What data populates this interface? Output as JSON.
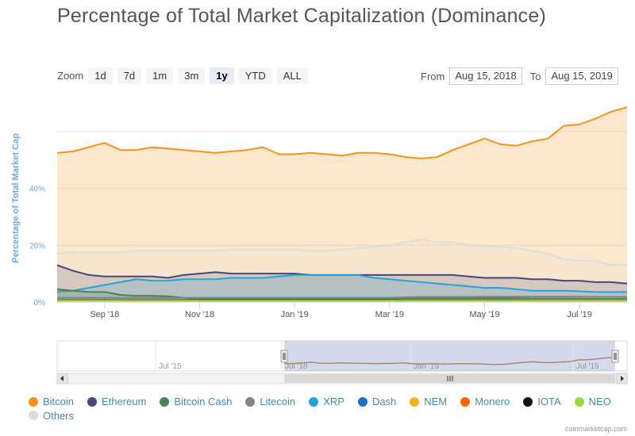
{
  "title": "Percentage of Total Market Capitalization (Dominance)",
  "zoom": {
    "label": "Zoom",
    "buttons": [
      "1d",
      "7d",
      "1m",
      "3m",
      "1y",
      "YTD",
      "ALL"
    ],
    "active": "1y"
  },
  "range": {
    "from_label": "From",
    "from_value": "Aug 15, 2018",
    "to_label": "To",
    "to_value": "Aug 15, 2019"
  },
  "chart_data": {
    "type": "area",
    "title": "Percentage of Total Market Capitalization (Dominance)",
    "ylabel": "Percentage of Total Market Cap",
    "xlabel": "",
    "ylim": [
      0,
      70
    ],
    "y_ticks": [
      "0%",
      "20%",
      "40%"
    ],
    "x_ticks": [
      "Sep '18",
      "Nov '18",
      "Jan '19",
      "Mar '19",
      "May '19",
      "Jul '19"
    ],
    "x": [
      "Aug 15 '18",
      "Aug 25 '18",
      "Sep 5 '18",
      "Sep 15 '18",
      "Sep 25 '18",
      "Oct 5 '18",
      "Oct 15 '18",
      "Oct 25 '18",
      "Nov 5 '18",
      "Nov 15 '18",
      "Nov 25 '18",
      "Dec 5 '18",
      "Dec 15 '18",
      "Dec 25 '18",
      "Jan 5 '19",
      "Jan 15 '19",
      "Jan 25 '19",
      "Feb 5 '19",
      "Feb 15 '19",
      "Feb 25 '19",
      "Mar 5 '19",
      "Mar 15 '19",
      "Mar 25 '19",
      "Apr 5 '19",
      "Apr 15 '19",
      "Apr 25 '19",
      "May 5 '19",
      "May 15 '19",
      "May 25 '19",
      "Jun 5 '19",
      "Jun 15 '19",
      "Jun 25 '19",
      "Jul 5 '19",
      "Jul 15 '19",
      "Jul 25 '19",
      "Aug 5 '19",
      "Aug 15 '19"
    ],
    "series": [
      {
        "name": "Bitcoin",
        "color": "#f7931a",
        "values": [
          52.5,
          53,
          54.5,
          56,
          53.5,
          53.5,
          54.5,
          54,
          53.5,
          53,
          52.5,
          53,
          53.5,
          54.5,
          52,
          52,
          52.5,
          52,
          51.5,
          52.5,
          52.5,
          52,
          51,
          50.5,
          51,
          53.5,
          55.5,
          57.5,
          55.5,
          55,
          56.5,
          57.5,
          62,
          62.5,
          64.5,
          67,
          68.5
        ]
      },
      {
        "name": "Ethereum",
        "color": "#454a75",
        "values": [
          13,
          11,
          9.5,
          9,
          9,
          9,
          9,
          8.5,
          9.5,
          10,
          10.5,
          10,
          10,
          10,
          10,
          10,
          9.5,
          9.5,
          9.5,
          9.5,
          9.5,
          9.5,
          9.5,
          9.5,
          9.5,
          9.5,
          9,
          8.5,
          8.5,
          8.5,
          8,
          8,
          7.5,
          7.5,
          7,
          7,
          6.5
        ]
      },
      {
        "name": "Bitcoin Cash",
        "color": "#478558",
        "values": [
          4.5,
          4,
          3.5,
          3.5,
          2.5,
          2.2,
          2.2,
          2,
          1.5,
          1,
          1,
          1,
          1,
          1,
          1.1,
          1.1,
          1.1,
          1.1,
          1.1,
          1.1,
          1.1,
          1.2,
          1.4,
          1.4,
          1.4,
          1.4,
          1.4,
          1.4,
          1.4,
          1.4,
          1.2,
          1.2,
          1.2,
          1.2,
          1.1,
          1.1,
          1.1
        ]
      },
      {
        "name": "Litecoin",
        "color": "#838383",
        "values": [
          1.5,
          1.5,
          1.5,
          1.5,
          1.5,
          1.5,
          1.5,
          1.5,
          1.5,
          1.5,
          1.5,
          1.5,
          1.5,
          1.5,
          1.5,
          1.5,
          1.5,
          1.5,
          1.5,
          1.5,
          1.5,
          1.5,
          1.7,
          1.8,
          1.8,
          1.8,
          1.8,
          1.9,
          1.9,
          1.9,
          1.9,
          1.9,
          1.9,
          1.9,
          1.8,
          1.8,
          1.8
        ]
      },
      {
        "name": "XRP",
        "color": "#27a2db",
        "values": [
          3.7,
          4,
          5,
          6,
          7,
          8,
          7.5,
          7.5,
          8,
          8,
          8,
          8.5,
          8.5,
          8.5,
          9,
          9.5,
          9.5,
          9.5,
          9.5,
          9.5,
          8.5,
          8,
          7.5,
          7,
          6.5,
          6,
          5.5,
          5,
          5,
          4.5,
          4,
          4,
          4,
          3.8,
          3.5,
          3.5,
          3.5
        ]
      },
      {
        "name": "Dash",
        "color": "#1c75bc",
        "values": [
          0.7,
          0.7,
          0.7,
          0.7,
          0.7,
          0.7,
          0.6,
          0.6,
          0.6,
          0.6,
          0.6,
          0.6,
          0.6,
          0.6,
          0.6,
          0.6,
          0.6,
          0.6,
          0.6,
          0.6,
          0.6,
          0.6,
          0.6,
          0.6,
          0.6,
          0.6,
          0.6,
          0.6,
          0.6,
          0.6,
          0.5,
          0.5,
          0.5,
          0.5,
          0.5,
          0.5,
          0.5
        ]
      },
      {
        "name": "NEM",
        "color": "#f8b31c",
        "values": [
          0.4,
          0.4,
          0.4,
          0.4,
          0.4,
          0.4,
          0.4,
          0.4,
          0.4,
          0.4,
          0.4,
          0.4,
          0.4,
          0.4,
          0.4,
          0.4,
          0.4,
          0.4,
          0.4,
          0.4,
          0.4,
          0.4,
          0.4,
          0.4,
          0.4,
          0.4,
          0.4,
          0.4,
          0.4,
          0.4,
          0.4,
          0.4,
          0.4,
          0.4,
          0.4,
          0.4,
          0.4
        ]
      },
      {
        "name": "Monero",
        "color": "#ff6600",
        "values": [
          0.7,
          0.7,
          0.7,
          0.7,
          0.7,
          0.7,
          0.7,
          0.7,
          0.7,
          0.7,
          0.7,
          0.7,
          0.7,
          0.7,
          0.7,
          0.7,
          0.7,
          0.7,
          0.7,
          0.7,
          0.7,
          0.7,
          0.7,
          0.7,
          0.7,
          0.7,
          0.7,
          0.7,
          0.7,
          0.7,
          0.6,
          0.6,
          0.6,
          0.6,
          0.6,
          0.6,
          0.6
        ]
      },
      {
        "name": "IOTA",
        "color": "#111111",
        "values": [
          0.6,
          0.6,
          0.6,
          0.6,
          0.6,
          0.6,
          0.6,
          0.6,
          0.6,
          0.6,
          0.6,
          0.6,
          0.6,
          0.6,
          0.6,
          0.6,
          0.6,
          0.6,
          0.6,
          0.6,
          0.6,
          0.6,
          0.6,
          0.6,
          0.6,
          0.6,
          0.6,
          0.6,
          0.6,
          0.6,
          0.5,
          0.5,
          0.5,
          0.5,
          0.5,
          0.5,
          0.5
        ]
      },
      {
        "name": "NEO",
        "color": "#9ed73f",
        "values": [
          0.5,
          0.5,
          0.5,
          0.5,
          0.5,
          0.5,
          0.5,
          0.5,
          0.5,
          0.5,
          0.5,
          0.5,
          0.5,
          0.5,
          0.5,
          0.5,
          0.5,
          0.5,
          0.5,
          0.5,
          0.5,
          0.5,
          0.5,
          0.5,
          0.5,
          0.5,
          0.5,
          0.5,
          0.5,
          0.5,
          0.5,
          0.5,
          0.5,
          0.5,
          0.5,
          0.5,
          0.5
        ]
      },
      {
        "name": "Others",
        "color": "#dddddd",
        "values": [
          17,
          17.5,
          17.5,
          17.5,
          17.5,
          18,
          18,
          18,
          18,
          18,
          18,
          18.5,
          18.5,
          18.5,
          18.5,
          18.5,
          18,
          18,
          18.5,
          19,
          19.5,
          20,
          21,
          22,
          21,
          21,
          20,
          19.5,
          19.5,
          19,
          18,
          17,
          15,
          14.5,
          14.5,
          13,
          13
        ]
      }
    ],
    "navigator": {
      "x_ticks": [
        "Jul '15",
        "Jul '18",
        "Jan '19",
        "Jul '19"
      ]
    }
  },
  "legend_items": [
    "Bitcoin",
    "Ethereum",
    "Bitcoin Cash",
    "Litecoin",
    "XRP",
    "Dash",
    "NEM",
    "Monero",
    "IOTA",
    "NEO",
    "Others"
  ],
  "credit": "coinmarketcap.com"
}
